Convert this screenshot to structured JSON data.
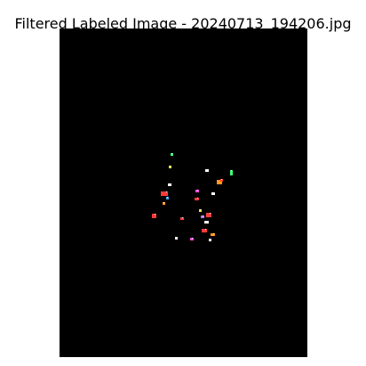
{
  "figure": {
    "title": "Filtered Labeled Image - 20240713_194206.jpg"
  },
  "image": {
    "background_color": "#000000",
    "content": "small colored labeled blobs on black background",
    "label_colors": [
      "#ff3b3b",
      "#ffffff",
      "#ff9a1a",
      "#3dff7a",
      "#ff4fd8",
      "#4aa8ff",
      "#ffe14a",
      "#b87bff"
    ]
  }
}
